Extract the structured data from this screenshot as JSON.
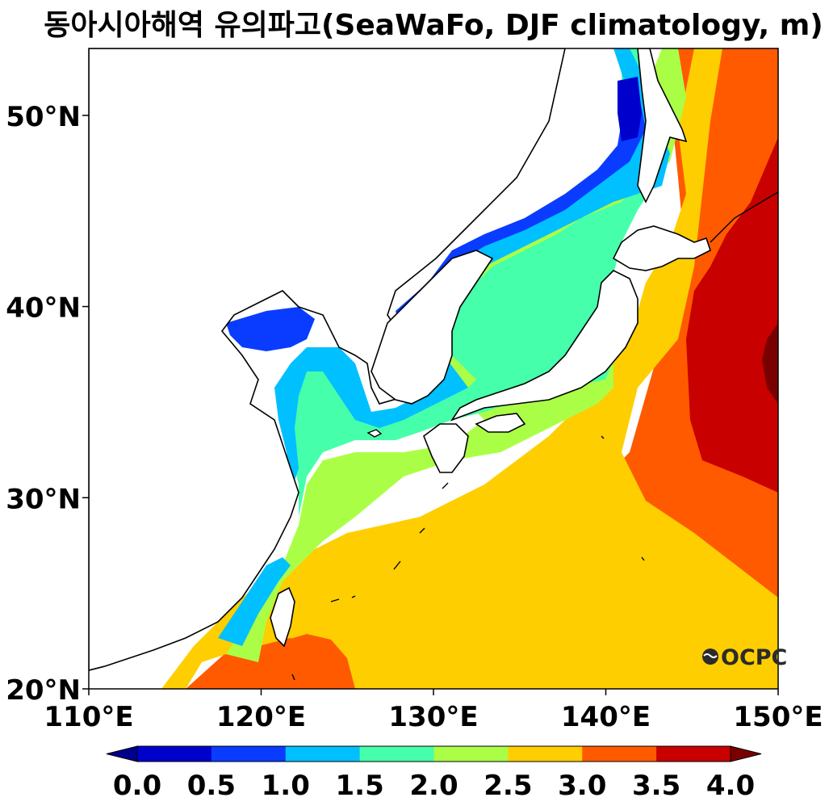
{
  "title": "동아시아해역 유의파고(SeaWaFo, DJF climatology, m)",
  "map": {
    "lon_range": [
      110,
      150
    ],
    "lat_range": [
      20,
      53.5
    ],
    "lat_ticks": [
      {
        "value": 20,
        "label": "20°N"
      },
      {
        "value": 30,
        "label": "30°N"
      },
      {
        "value": 40,
        "label": "40°N"
      },
      {
        "value": 50,
        "label": "50°N"
      }
    ],
    "lon_ticks": [
      {
        "value": 110,
        "label": "110°E"
      },
      {
        "value": 120,
        "label": "120°E"
      },
      {
        "value": 130,
        "label": "130°E"
      },
      {
        "value": 140,
        "label": "140°E"
      },
      {
        "value": 150,
        "label": "150°E"
      }
    ],
    "logo": "OCPC"
  },
  "colorbar": {
    "levels": [
      0.0,
      0.5,
      1.0,
      1.5,
      2.0,
      2.5,
      3.0,
      3.5,
      4.0
    ],
    "labels": [
      "0.0",
      "0.5",
      "1.0",
      "1.5",
      "2.0",
      "2.5",
      "3.0",
      "3.5",
      "4.0"
    ],
    "colors": [
      "#0000cd",
      "#0a3cff",
      "#00c0ff",
      "#46ffaa",
      "#aaff46",
      "#ffce00",
      "#ff5a00",
      "#c80000"
    ],
    "under_color": "#00008b",
    "over_color": "#7a0000"
  }
}
